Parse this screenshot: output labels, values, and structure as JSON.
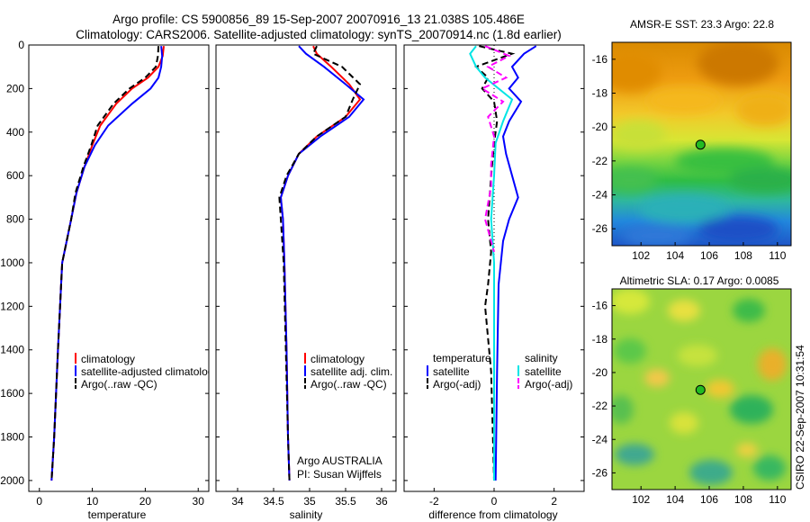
{
  "figure": {
    "title_line1": "Argo profile: CS 5900856_89 15-Sep-2007 20070916_13 21.038S 105.486E",
    "title_line2": "Climatology: CARS2006. Satellite-adjusted climatology: synTS_20070914.nc (1.8d earlier)",
    "footer_stamp": "CSIRO 22-Sep-2007 10:31:54"
  },
  "chart_data": [
    {
      "id": "temperature",
      "type": "line",
      "xlabel": "temperature",
      "xlim": [
        -2,
        32
      ],
      "xticks": [
        0,
        10,
        20,
        30
      ],
      "ylim": [
        2050,
        0
      ],
      "yticks": [
        0,
        200,
        400,
        600,
        800,
        1000,
        1200,
        1400,
        1600,
        1800,
        2000
      ],
      "legend": [
        "climatology",
        "satellite-adjusted climatology",
        "Argo(..raw -QC)"
      ],
      "series": [
        {
          "name": "climatology",
          "color": "#ff0000",
          "dash": "",
          "x": [
            23.5,
            23.3,
            22.5,
            20.5,
            17.5,
            14.5,
            11.5,
            10,
            8.5,
            7,
            6,
            4.3,
            3.5,
            2.8,
            2.3
          ],
          "y": [
            5,
            50,
            100,
            150,
            200,
            270,
            370,
            460,
            560,
            680,
            800,
            1000,
            1400,
            1800,
            2000
          ]
        },
        {
          "name": "satellite-adjusted climatology",
          "color": "#0000ff",
          "dash": "",
          "x": [
            23.0,
            23.2,
            23.0,
            22.5,
            21.0,
            17.5,
            13.0,
            10.5,
            8.5,
            7,
            6,
            4.3,
            3.5,
            2.8,
            2.3
          ],
          "y": [
            5,
            50,
            100,
            150,
            200,
            270,
            370,
            460,
            560,
            680,
            800,
            1000,
            1400,
            1800,
            2000
          ]
        },
        {
          "name": "Argo(..raw -QC)",
          "color": "#000000",
          "dash": "7,4",
          "x": [
            22.5,
            22.4,
            22.0,
            20.0,
            17.0,
            14.0,
            11.0,
            9.8,
            8.3,
            6.8,
            6,
            4.3,
            3.5,
            2.8,
            2.3
          ],
          "y": [
            5,
            50,
            100,
            150,
            200,
            270,
            370,
            460,
            560,
            680,
            800,
            1000,
            1400,
            1800,
            2000
          ]
        }
      ]
    },
    {
      "id": "salinity",
      "type": "line",
      "xlabel": "salinity",
      "xlim": [
        33.7,
        36.2
      ],
      "xticks": [
        34,
        34.5,
        35,
        35.5,
        36
      ],
      "ylim": [
        2050,
        0
      ],
      "yticks": [
        0,
        200,
        400,
        600,
        800,
        1000,
        1200,
        1400,
        1600,
        1800,
        2000
      ],
      "legend": [
        "climatology",
        "satellite adj. clim.",
        "Argo(..raw -QC)"
      ],
      "annotation_line1": "Argo AUSTRALIA",
      "annotation_line2": "PI: Susan Wijffels",
      "series": [
        {
          "name": "climatology",
          "color": "#ff0000",
          "dash": "",
          "x": [
            35.05,
            35.1,
            35.3,
            35.55,
            35.7,
            35.5,
            35.1,
            34.85,
            34.7,
            34.6,
            34.63,
            34.65,
            34.68,
            34.7,
            34.72
          ],
          "y": [
            5,
            40,
            100,
            180,
            250,
            330,
            420,
            500,
            600,
            700,
            800,
            1000,
            1400,
            1800,
            2000
          ]
        },
        {
          "name": "satellite adj. clim.",
          "color": "#0000ff",
          "dash": "",
          "x": [
            34.85,
            34.95,
            35.2,
            35.5,
            35.75,
            35.55,
            35.15,
            34.85,
            34.7,
            34.6,
            34.63,
            34.65,
            34.68,
            34.7,
            34.72
          ],
          "y": [
            5,
            40,
            100,
            180,
            250,
            330,
            420,
            500,
            600,
            700,
            800,
            1000,
            1400,
            1800,
            2000
          ]
        },
        {
          "name": "Argo(..raw -QC)",
          "color": "#000000",
          "dash": "7,4",
          "x": [
            35.1,
            35.05,
            35.45,
            35.7,
            35.6,
            35.5,
            35.1,
            34.85,
            34.68,
            34.58,
            34.6,
            34.64,
            34.67,
            34.7,
            34.72
          ],
          "y": [
            5,
            40,
            100,
            180,
            250,
            330,
            420,
            500,
            600,
            700,
            800,
            1000,
            1400,
            1800,
            2000
          ]
        }
      ]
    },
    {
      "id": "difference",
      "type": "line",
      "xlabel": "difference from climatology",
      "xlim": [
        -3,
        3
      ],
      "xticks": [
        -2,
        0,
        2
      ],
      "ylim": [
        2050,
        0
      ],
      "yticks": [
        0,
        200,
        400,
        600,
        800,
        1000,
        1200,
        1400,
        1600,
        1800,
        2000
      ],
      "legend_temperature_title": "temperature",
      "legend_salinity_title": "salinity",
      "legend": [
        "satellite",
        "Argo(-adj)",
        "satellite",
        "Argo(-adj)"
      ],
      "series": [
        {
          "name": "temperature satellite",
          "color": "#0000ff",
          "dash": "",
          "x": [
            1.4,
            1.0,
            0.6,
            0.8,
            0.5,
            0.9,
            0.5,
            0.3,
            0.4,
            0.6,
            0.8,
            0.5,
            0.3,
            0.15,
            0.1,
            0.05
          ],
          "y": [
            5,
            40,
            100,
            150,
            200,
            260,
            350,
            420,
            500,
            600,
            700,
            800,
            900,
            1100,
            1500,
            2000
          ]
        },
        {
          "name": "temperature Argo(-adj)",
          "color": "#000000",
          "dash": "7,4",
          "x": [
            -0.5,
            0.6,
            -0.6,
            -0.2,
            -0.4,
            0.0,
            0.1,
            0.0,
            -0.1,
            -0.2,
            -0.1,
            -0.2,
            -0.3,
            -0.1,
            0.0
          ],
          "y": [
            5,
            40,
            100,
            150,
            200,
            260,
            350,
            450,
            600,
            800,
            950,
            1100,
            1200,
            1500,
            2000
          ]
        },
        {
          "name": "salinity satellite",
          "color": "#00e5e5",
          "dash": "",
          "x": [
            -0.6,
            -0.8,
            -0.6,
            -0.3,
            0.6,
            0.3,
            0.05,
            0.0,
            -0.1,
            0.0,
            0.0,
            0.0
          ],
          "y": [
            5,
            40,
            100,
            150,
            250,
            350,
            450,
            600,
            800,
            1000,
            1500,
            2000
          ]
        },
        {
          "name": "salinity Argo(-adj)",
          "color": "#ff00ff",
          "dash": "7,4",
          "x": [
            -0.3,
            0.5,
            -0.2,
            0.4,
            -0.4,
            0.3,
            -0.2,
            0.0,
            -0.1,
            -0.1,
            -0.3,
            0.0
          ],
          "y": [
            5,
            50,
            100,
            150,
            200,
            260,
            330,
            420,
            550,
            650,
            800,
            950
          ]
        }
      ]
    },
    {
      "id": "amsr-sst-map",
      "type": "heatmap",
      "title": "AMSR-E SST: 23.3 Argo: 22.8",
      "xlim": [
        100.3,
        110.8
      ],
      "ylim": [
        -27.0,
        -15.0
      ],
      "xticks": [
        102,
        104,
        106,
        108,
        110
      ],
      "yticks": [
        -16,
        -18,
        -20,
        -22,
        -24,
        -26
      ],
      "marker": {
        "lon": 105.486,
        "lat": -21.038
      }
    },
    {
      "id": "altimetric-sla-map",
      "type": "heatmap",
      "title": "Altimetric SLA: 0.17 Argo: 0.0085",
      "xlim": [
        100.3,
        110.8
      ],
      "ylim": [
        -27.0,
        -15.0
      ],
      "xticks": [
        102,
        104,
        106,
        108,
        110
      ],
      "yticks": [
        -16,
        -18,
        -20,
        -22,
        -24,
        -26
      ],
      "marker": {
        "lon": 105.486,
        "lat": -21.038
      }
    }
  ]
}
